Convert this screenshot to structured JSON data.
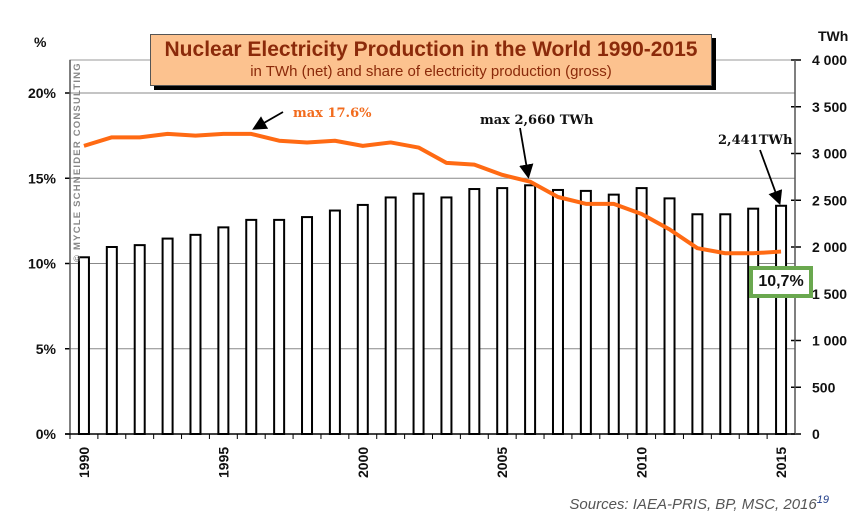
{
  "chart_data": {
    "type": "bar",
    "title": "Nuclear Electricity Production in the World 1990-2015",
    "subtitle": "in TWh (net) and share of electricity production (gross)",
    "xlabel": "",
    "ylabel_left": "%",
    "ylabel_right": "TWh",
    "categories": [
      1990,
      1991,
      1992,
      1993,
      1994,
      1995,
      1996,
      1997,
      1998,
      1999,
      2000,
      2001,
      2002,
      2003,
      2004,
      2005,
      2006,
      2007,
      2008,
      2009,
      2010,
      2011,
      2012,
      2013,
      2014,
      2015
    ],
    "x_tick_labels": [
      "1990",
      "1995",
      "2000",
      "2005",
      "2010",
      "2015"
    ],
    "series": [
      {
        "name": "Nuclear electricity production (TWh, net)",
        "type": "bar",
        "axis": "right",
        "values": [
          1890,
          2000,
          2020,
          2090,
          2130,
          2210,
          2290,
          2290,
          2320,
          2390,
          2450,
          2530,
          2570,
          2530,
          2620,
          2630,
          2660,
          2610,
          2600,
          2560,
          2630,
          2520,
          2350,
          2350,
          2410,
          2441
        ]
      },
      {
        "name": "Nuclear share of electricity production (%, gross)",
        "type": "line",
        "axis": "left",
        "color": "#ff6a13",
        "values": [
          16.9,
          17.4,
          17.4,
          17.6,
          17.5,
          17.6,
          17.6,
          17.2,
          17.1,
          17.2,
          16.9,
          17.1,
          16.8,
          15.9,
          15.8,
          15.2,
          14.8,
          13.9,
          13.5,
          13.5,
          12.9,
          12.0,
          10.9,
          10.6,
          10.6,
          10.7
        ]
      }
    ],
    "ylim_left": [
      0,
      20
    ],
    "ylim_right": [
      0,
      4000
    ],
    "left_ticks": [
      "0%",
      "5%",
      "10%",
      "15%",
      "20%"
    ],
    "right_ticks": [
      "0",
      "500",
      "1 000",
      "1 500",
      "2 000",
      "2 500",
      "3 000",
      "3 500",
      "4 000"
    ],
    "grid": true,
    "annotations": {
      "max_share": "max 17.6%",
      "max_twh": "max 2,660 TWh",
      "last_twh": "2,441TWh",
      "last_share": "10,7%"
    }
  },
  "watermark": "© MYCLE SCHNEIDER CONSULTING",
  "source": "Sources: IAEA-PRIS, BP, MSC, 2016",
  "footnote": "19",
  "colors": {
    "line": "#ff6a13",
    "title_bg": "#fcc28f",
    "title_text": "#8b2a0a",
    "badge_border": "#6aa84f"
  }
}
